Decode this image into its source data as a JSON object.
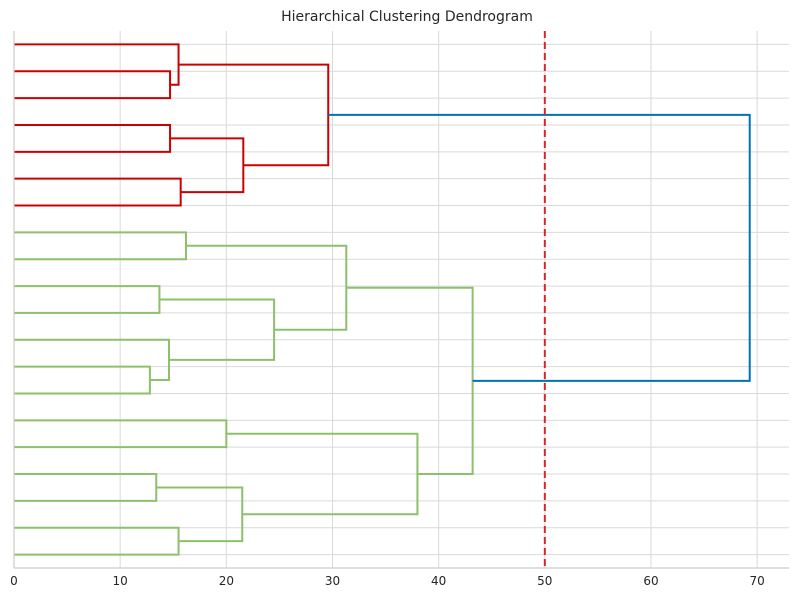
{
  "chart_data": {
    "type": "dendrogram",
    "title": "Hierarchical Clustering Dendrogram",
    "xlabel": "",
    "ylabel": "",
    "orientation": "horizontal",
    "xlim": [
      0,
      73
    ],
    "xticks": [
      0,
      10,
      20,
      30,
      40,
      50,
      60,
      70
    ],
    "leaf_count": 20,
    "leaf_labels_shown": false,
    "grid": true,
    "threshold": {
      "value": 50,
      "color": "#d62728",
      "style": "dashed"
    },
    "cluster_colors": {
      "cluster_1": "#cc0000",
      "cluster_2": "#8dc06a",
      "above_threshold": "#0072b2"
    },
    "merges": [
      {
        "id": "m1",
        "a": "L1",
        "b": "L2",
        "height": 14.7,
        "color": "#cc0000"
      },
      {
        "id": "m2",
        "a": "L0",
        "b": "m1",
        "height": 15.5,
        "color": "#cc0000"
      },
      {
        "id": "m3",
        "a": "L3",
        "b": "L4",
        "height": 14.7,
        "color": "#cc0000"
      },
      {
        "id": "m4",
        "a": "L5",
        "b": "L6",
        "height": 15.7,
        "color": "#cc0000"
      },
      {
        "id": "m5",
        "a": "m3",
        "b": "m4",
        "height": 21.6,
        "color": "#cc0000"
      },
      {
        "id": "m6",
        "a": "m2",
        "b": "m5",
        "height": 29.6,
        "color": "#cc0000"
      },
      {
        "id": "m7",
        "a": "L7",
        "b": "L8",
        "height": 16.2,
        "color": "#8dc06a"
      },
      {
        "id": "m8",
        "a": "L9",
        "b": "L10",
        "height": 13.7,
        "color": "#8dc06a"
      },
      {
        "id": "m9",
        "a": "L12",
        "b": "L13",
        "height": 12.8,
        "color": "#8dc06a"
      },
      {
        "id": "m10",
        "a": "L11",
        "b": "m9",
        "height": 14.6,
        "color": "#8dc06a"
      },
      {
        "id": "m11",
        "a": "m8",
        "b": "m10",
        "height": 24.5,
        "color": "#8dc06a"
      },
      {
        "id": "m12",
        "a": "m7",
        "b": "m11",
        "height": 31.3,
        "color": "#8dc06a"
      },
      {
        "id": "m13",
        "a": "L14",
        "b": "L15",
        "height": 20.0,
        "color": "#8dc06a"
      },
      {
        "id": "m14",
        "a": "L16",
        "b": "L17",
        "height": 13.4,
        "color": "#8dc06a"
      },
      {
        "id": "m15",
        "a": "L18",
        "b": "L19",
        "height": 15.5,
        "color": "#8dc06a"
      },
      {
        "id": "m16",
        "a": "m14",
        "b": "m15",
        "height": 21.5,
        "color": "#8dc06a"
      },
      {
        "id": "m17",
        "a": "m13",
        "b": "m16",
        "height": 38.0,
        "color": "#8dc06a"
      },
      {
        "id": "m18",
        "a": "m12",
        "b": "m17",
        "height": 43.2,
        "color": "#8dc06a"
      },
      {
        "id": "m19",
        "a": "m6",
        "b": "m18",
        "height": 69.3,
        "color": "#0072b2"
      }
    ]
  }
}
